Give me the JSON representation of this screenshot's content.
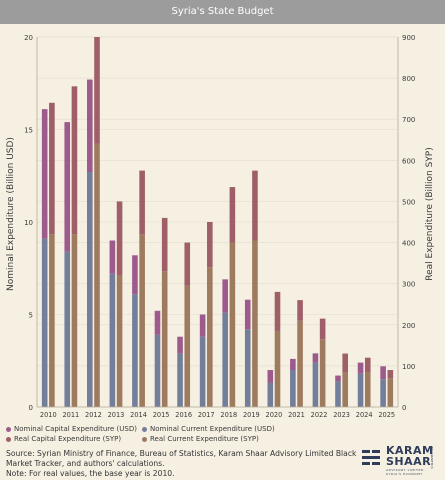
{
  "chart_data": {
    "type": "bar",
    "stacked": true,
    "title": "Syria's State Budget",
    "ylabel_left": "Nominal Expenditure (Billion USD)",
    "ylabel_right": "Real Expenditure (Billion SYP)",
    "ylim_left": [
      0,
      20
    ],
    "ylim_right": [
      0,
      900
    ],
    "yticks_left": [
      "0",
      "5",
      "10",
      "15",
      "20"
    ],
    "yticks_right": [
      "0",
      "100",
      "200",
      "300",
      "400",
      "500",
      "600",
      "700",
      "800",
      "900"
    ],
    "categories": [
      "2010",
      "2011",
      "2012",
      "2013",
      "2014",
      "2015",
      "2016",
      "2017",
      "2018",
      "2019",
      "2020",
      "2021",
      "2022",
      "2023",
      "2024",
      "2025"
    ],
    "legend_position": "bottom",
    "series": [
      {
        "name": "Nominal Current Expenditure (USD)",
        "axis": "left",
        "group": "usd",
        "color": "#737e9a",
        "values": [
          9.1,
          8.4,
          12.7,
          7.2,
          6.1,
          3.9,
          2.9,
          3.8,
          5.1,
          4.2,
          1.3,
          2.0,
          2.4,
          1.4,
          1.8,
          1.5
        ]
      },
      {
        "name": "Nominal Capital Expenditure (USD)",
        "axis": "left",
        "group": "usd",
        "color": "#9c5b8c",
        "values": [
          7.0,
          7.0,
          5.0,
          1.8,
          2.1,
          1.3,
          0.9,
          1.2,
          1.8,
          1.6,
          0.7,
          0.6,
          0.5,
          0.3,
          0.6,
          0.7
        ]
      },
      {
        "name": "Real Current Expenditure (SYP)",
        "axis": "right",
        "group": "syp",
        "color": "#9e7b5f",
        "values": [
          420,
          420,
          640,
          320,
          420,
          330,
          295,
          340,
          400,
          405,
          185,
          210,
          165,
          85,
          85,
          70
        ]
      },
      {
        "name": "Real Capital Expenditure (SYP)",
        "axis": "right",
        "group": "syp",
        "color": "#9e5f68",
        "values": [
          320,
          360,
          260,
          180,
          155,
          130,
          105,
          110,
          135,
          170,
          95,
          50,
          50,
          45,
          35,
          20
        ]
      }
    ]
  },
  "legend_order": [
    1,
    0,
    3,
    2
  ],
  "source_text": "Source: Syrian Ministry of Finance, Bureau of Statistics, Karam Shaar Advisory Limited Black Market Tracker, and authors' calculations.",
  "note_text": "Note: For real values, the base year is 2010.",
  "logo": {
    "line1": "KARAM",
    "line2": "SHAAR",
    "subtitle": "ADVISORY LIMITED · SYRIA'S ECONOMY",
    "side": "INFOGRAPHICS"
  }
}
